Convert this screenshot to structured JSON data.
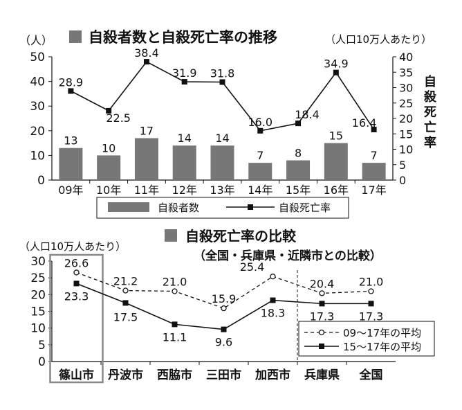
{
  "chart_data": [
    {
      "type": "bar+line",
      "title": "自殺者数と自殺死亡率の推移",
      "left_unit": "（人）",
      "right_unit": "（人口10万人あたり）",
      "right_axis_label": "自殺死亡率",
      "categories": [
        "09年",
        "10年",
        "11年",
        "12年",
        "13年",
        "14年",
        "15年",
        "16年",
        "17年"
      ],
      "left_ylim": [
        0,
        50
      ],
      "left_ticks": [
        0,
        10,
        20,
        30,
        40,
        50
      ],
      "right_ylim": [
        0,
        40
      ],
      "right_ticks": [
        0,
        5,
        10,
        15,
        20,
        25,
        30,
        35,
        40
      ],
      "series": [
        {
          "name": "自殺者数",
          "kind": "bar",
          "axis": "left",
          "values": [
            13,
            10,
            17,
            14,
            14,
            7,
            8,
            15,
            7
          ],
          "labels": [
            "13",
            "10",
            "17",
            "14",
            "14",
            "7",
            "8",
            "15",
            "7"
          ]
        },
        {
          "name": "自殺死亡率",
          "kind": "line",
          "axis": "right",
          "values": [
            28.9,
            22.5,
            38.4,
            31.9,
            31.8,
            16.0,
            18.4,
            34.9,
            16.4
          ],
          "labels": [
            "28.9",
            "22.5",
            "38.4",
            "31.9",
            "31.8",
            "16.0",
            "18.4",
            "34.9",
            "16.4"
          ]
        }
      ],
      "legend": [
        "自殺者数",
        "自殺死亡率"
      ],
      "legend_position": "bottom",
      "bar_color": "#777777"
    },
    {
      "type": "line",
      "title": "自殺死亡率の比較",
      "subtitle": "（全国・兵庫県・近隣市との比較）",
      "y_unit": "（人口10万人あたり）",
      "categories": [
        "篠山市",
        "丹波市",
        "西脇市",
        "三田市",
        "加西市",
        "兵庫県",
        "全国"
      ],
      "ylim": [
        0,
        30
      ],
      "y_ticks": [
        0,
        5,
        10,
        15,
        20,
        25,
        30
      ],
      "series": [
        {
          "name": "09～17年の平均",
          "style": "dashed-circle",
          "values": [
            26.6,
            21.2,
            21.0,
            15.9,
            25.4,
            20.4,
            21.0
          ],
          "labels": [
            "26.6",
            "21.2",
            "21.0",
            "15.9",
            "25.4",
            "20.4",
            "21.0"
          ]
        },
        {
          "name": "15～17年の平均",
          "style": "solid-square",
          "values": [
            23.3,
            17.5,
            11.1,
            9.6,
            18.3,
            17.3,
            17.3
          ],
          "labels": [
            "23.3",
            "17.5",
            "11.1",
            "9.6",
            "18.3",
            "17.3",
            "17.3"
          ]
        }
      ],
      "highlighted_category": "篠山市",
      "legend_position": "bottom-right"
    }
  ]
}
